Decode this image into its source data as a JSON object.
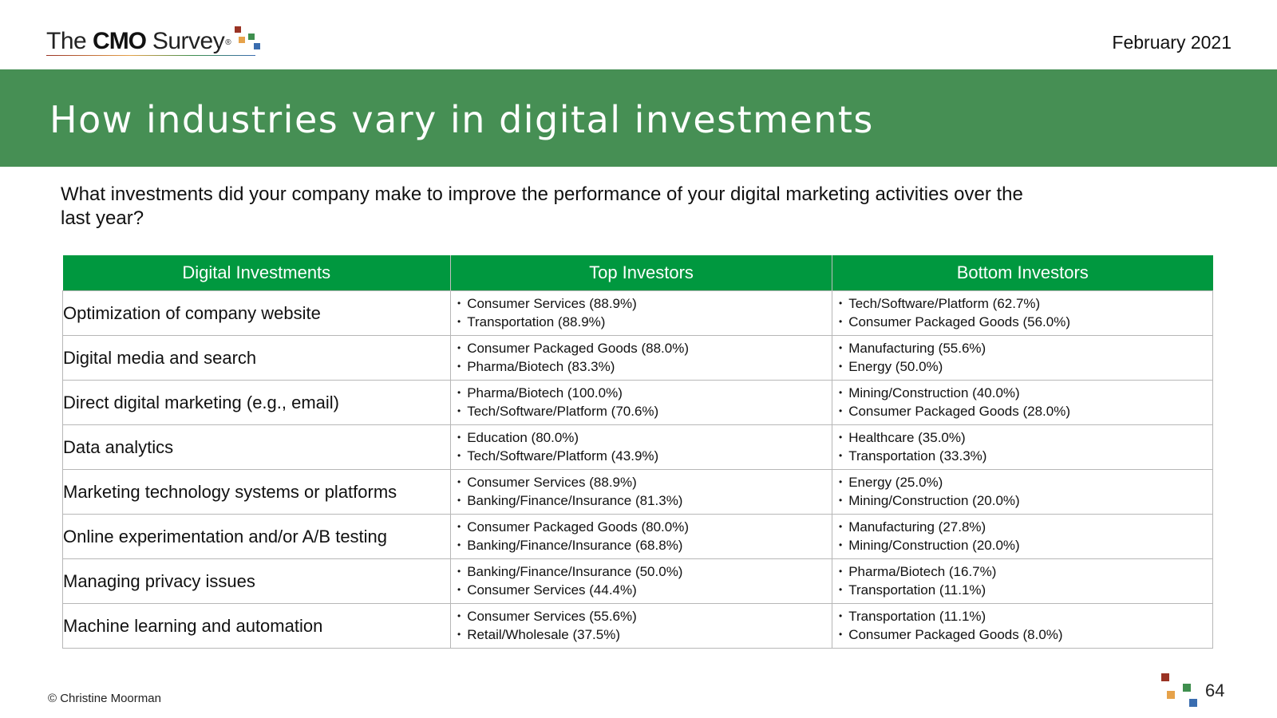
{
  "header": {
    "logo_prefix": "The ",
    "logo_bold": "CMO",
    "logo_suffix": " Survey",
    "logo_reg": "®",
    "date": "February 2021"
  },
  "banner": {
    "title": "How industries vary in digital investments"
  },
  "question": "What investments did your company make to improve the performance of your digital marketing activities over the last year?",
  "table": {
    "headers": [
      "Digital Investments",
      "Top Investors",
      "Bottom Investors"
    ],
    "rows": [
      {
        "investment": "Optimization of company website",
        "top": [
          "Consumer Services (88.9%)",
          "Transportation (88.9%)"
        ],
        "bottom": [
          "Tech/Software/Platform (62.7%)",
          "Consumer Packaged Goods (56.0%)"
        ]
      },
      {
        "investment": "Digital media and search",
        "top": [
          "Consumer Packaged Goods (88.0%)",
          "Pharma/Biotech (83.3%)"
        ],
        "bottom": [
          "Manufacturing (55.6%)",
          "Energy (50.0%)"
        ]
      },
      {
        "investment": "Direct digital marketing (e.g., email)",
        "top": [
          "Pharma/Biotech (100.0%)",
          "Tech/Software/Platform (70.6%)"
        ],
        "bottom": [
          "Mining/Construction (40.0%)",
          "Consumer Packaged Goods (28.0%)"
        ]
      },
      {
        "investment": "Data analytics",
        "top": [
          "Education (80.0%)",
          "Tech/Software/Platform (43.9%)"
        ],
        "bottom": [
          "Healthcare (35.0%)",
          "Transportation (33.3%)"
        ]
      },
      {
        "investment": "Marketing technology systems or platforms",
        "top": [
          "Consumer Services (88.9%)",
          "Banking/Finance/Insurance (81.3%)"
        ],
        "bottom": [
          "Energy (25.0%)",
          "Mining/Construction (20.0%)"
        ]
      },
      {
        "investment": "Online experimentation and/or A/B testing",
        "top": [
          "Consumer Packaged Goods (80.0%)",
          "Banking/Finance/Insurance (68.8%)"
        ],
        "bottom": [
          "Manufacturing (27.8%)",
          "Mining/Construction (20.0%)"
        ]
      },
      {
        "investment": "Managing privacy issues",
        "top": [
          "Banking/Finance/Insurance (50.0%)",
          "Consumer Services (44.4%)"
        ],
        "bottom": [
          "Pharma/Biotech (16.7%)",
          "Transportation (11.1%)"
        ]
      },
      {
        "investment": "Machine learning and automation",
        "top": [
          "Consumer Services (55.6%)",
          "Retail/Wholesale (37.5%)"
        ],
        "bottom": [
          "Transportation (11.1%)",
          "Consumer Packaged Goods (8.0%)"
        ]
      }
    ]
  },
  "footer": {
    "copyright": "© Christine Moorman",
    "page_number": "64"
  },
  "colors": {
    "banner": "#468f54",
    "table_header": "#00983f",
    "logo_square_red": "#9a3324",
    "logo_square_orange": "#e6a24a",
    "logo_square_green": "#3f8f4e",
    "logo_square_blue": "#3a6db0"
  }
}
